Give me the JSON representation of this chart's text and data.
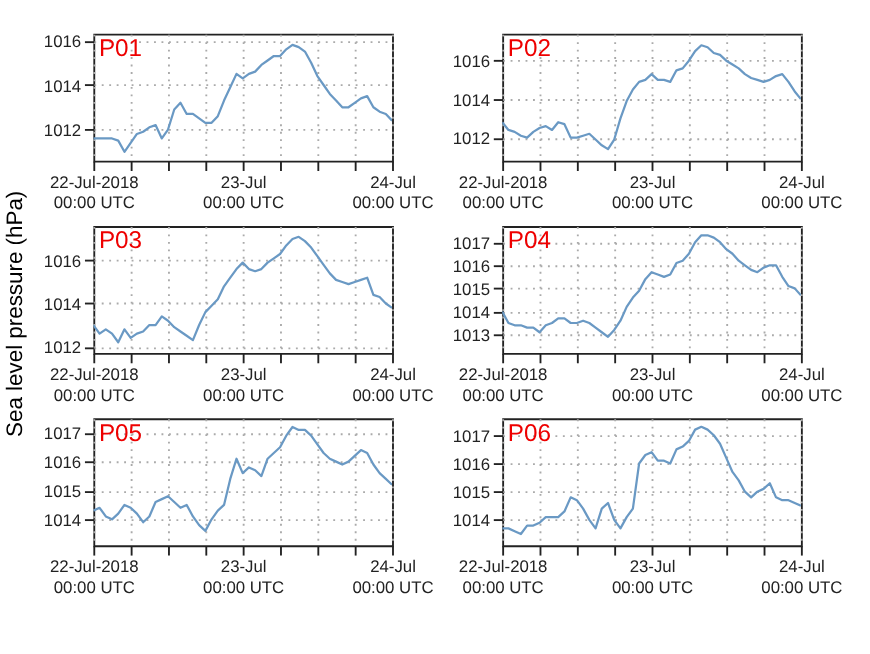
{
  "chart_data": [
    {
      "type": "line",
      "title": "P01",
      "color": "#6a99c4",
      "grid": true,
      "xlim": [
        "2018-07-22T00:00",
        "2018-07-24T00:00"
      ],
      "ylim": [
        1010.6,
        1016.3
      ],
      "yticks": [
        1012,
        1014,
        1016
      ],
      "xticks": [
        {
          "value": "2018-07-22T00:00",
          "label": "22-Jul-2018\n00:00 UTC"
        },
        {
          "value": "2018-07-22T06:00",
          "label": null
        },
        {
          "value": "2018-07-22T12:00",
          "label": null
        },
        {
          "value": "2018-07-22T18:00",
          "label": null
        },
        {
          "value": "2018-07-23T00:00",
          "label": "23-Jul\n00:00 UTC"
        },
        {
          "value": "2018-07-23T06:00",
          "label": null
        },
        {
          "value": "2018-07-23T12:00",
          "label": null
        },
        {
          "value": "2018-07-23T18:00",
          "label": null
        },
        {
          "value": "2018-07-24T00:00",
          "label": "24-Jul\n00:00 UTC"
        }
      ],
      "x": [
        "2018-07-22T00:00",
        "2018-07-22T01:00",
        "2018-07-22T02:00",
        "2018-07-22T03:00",
        "2018-07-22T04:00",
        "2018-07-22T05:00",
        "2018-07-22T06:00",
        "2018-07-22T07:00",
        "2018-07-22T08:00",
        "2018-07-22T09:00",
        "2018-07-22T10:00",
        "2018-07-22T11:00",
        "2018-07-22T12:00",
        "2018-07-22T13:00",
        "2018-07-22T14:00",
        "2018-07-22T15:00",
        "2018-07-22T16:00",
        "2018-07-22T17:00",
        "2018-07-22T18:00",
        "2018-07-22T19:00",
        "2018-07-22T20:00",
        "2018-07-22T21:00",
        "2018-07-22T22:00",
        "2018-07-22T23:00",
        "2018-07-23T00:00",
        "2018-07-23T01:00",
        "2018-07-23T02:00",
        "2018-07-23T03:00",
        "2018-07-23T04:00",
        "2018-07-23T05:00",
        "2018-07-23T06:00",
        "2018-07-23T07:00",
        "2018-07-23T08:00",
        "2018-07-23T09:00",
        "2018-07-23T10:00",
        "2018-07-23T11:00",
        "2018-07-23T12:00",
        "2018-07-23T13:00",
        "2018-07-23T14:00",
        "2018-07-23T15:00",
        "2018-07-23T16:00",
        "2018-07-23T17:00",
        "2018-07-23T18:00",
        "2018-07-23T19:00",
        "2018-07-23T20:00",
        "2018-07-23T21:00",
        "2018-07-23T22:00",
        "2018-07-23T23:00",
        "2018-07-24T00:00"
      ],
      "values": [
        1011.6,
        1011.6,
        1011.6,
        1011.6,
        1011.5,
        1011.0,
        1011.4,
        1011.8,
        1011.9,
        1012.1,
        1012.2,
        1011.6,
        1012.0,
        1012.9,
        1013.2,
        1012.7,
        1012.7,
        1012.5,
        1012.3,
        1012.3,
        1012.6,
        1013.3,
        1013.9,
        1014.5,
        1014.3,
        1014.5,
        1014.6,
        1014.9,
        1015.1,
        1015.3,
        1015.3,
        1015.6,
        1015.8,
        1015.7,
        1015.5,
        1015.0,
        1014.4,
        1014.0,
        1013.6,
        1013.3,
        1013.0,
        1013.0,
        1013.2,
        1013.4,
        1013.5,
        1013.0,
        1012.8,
        1012.7,
        1012.4
      ]
    },
    {
      "type": "line",
      "title": "P02",
      "color": "#6a99c4",
      "grid": true,
      "xlim": [
        "2018-07-22T00:00",
        "2018-07-24T00:00"
      ],
      "ylim": [
        1010.8,
        1017.4
      ],
      "yticks": [
        1012,
        1014,
        1016
      ],
      "xticks": [
        {
          "value": "2018-07-22T00:00",
          "label": "22-Jul-2018\n00:00 UTC"
        },
        {
          "value": "2018-07-22T06:00",
          "label": null
        },
        {
          "value": "2018-07-22T12:00",
          "label": null
        },
        {
          "value": "2018-07-22T18:00",
          "label": null
        },
        {
          "value": "2018-07-23T00:00",
          "label": "23-Jul\n00:00 UTC"
        },
        {
          "value": "2018-07-23T06:00",
          "label": null
        },
        {
          "value": "2018-07-23T12:00",
          "label": null
        },
        {
          "value": "2018-07-23T18:00",
          "label": null
        },
        {
          "value": "2018-07-24T00:00",
          "label": "24-Jul\n00:00 UTC"
        }
      ],
      "x": [
        "2018-07-22T00:00",
        "2018-07-22T01:00",
        "2018-07-22T02:00",
        "2018-07-22T03:00",
        "2018-07-22T04:00",
        "2018-07-22T05:00",
        "2018-07-22T06:00",
        "2018-07-22T07:00",
        "2018-07-22T08:00",
        "2018-07-22T09:00",
        "2018-07-22T10:00",
        "2018-07-22T11:00",
        "2018-07-22T12:00",
        "2018-07-22T13:00",
        "2018-07-22T14:00",
        "2018-07-22T15:00",
        "2018-07-22T16:00",
        "2018-07-22T17:00",
        "2018-07-22T18:00",
        "2018-07-22T19:00",
        "2018-07-22T20:00",
        "2018-07-22T21:00",
        "2018-07-22T22:00",
        "2018-07-22T23:00",
        "2018-07-23T00:00",
        "2018-07-23T01:00",
        "2018-07-23T02:00",
        "2018-07-23T03:00",
        "2018-07-23T04:00",
        "2018-07-23T05:00",
        "2018-07-23T06:00",
        "2018-07-23T07:00",
        "2018-07-23T08:00",
        "2018-07-23T09:00",
        "2018-07-23T10:00",
        "2018-07-23T11:00",
        "2018-07-23T12:00",
        "2018-07-23T13:00",
        "2018-07-23T14:00",
        "2018-07-23T15:00",
        "2018-07-23T16:00",
        "2018-07-23T17:00",
        "2018-07-23T18:00",
        "2018-07-23T19:00",
        "2018-07-23T20:00",
        "2018-07-23T21:00",
        "2018-07-23T22:00",
        "2018-07-23T23:00",
        "2018-07-24T00:00"
      ],
      "values": [
        1012.8,
        1012.4,
        1012.3,
        1012.1,
        1012.0,
        1012.3,
        1012.5,
        1012.6,
        1012.4,
        1012.8,
        1012.7,
        1012.0,
        1012.0,
        1012.1,
        1012.2,
        1011.9,
        1011.6,
        1011.4,
        1011.9,
        1013.0,
        1013.9,
        1014.5,
        1014.9,
        1015.0,
        1015.3,
        1015.0,
        1015.0,
        1014.9,
        1015.5,
        1015.6,
        1016.0,
        1016.5,
        1016.8,
        1016.7,
        1016.4,
        1016.3,
        1016.0,
        1015.8,
        1015.6,
        1015.3,
        1015.1,
        1015.0,
        1014.9,
        1015.0,
        1015.2,
        1015.3,
        1014.9,
        1014.4,
        1014.0
      ]
    },
    {
      "type": "line",
      "title": "P03",
      "ylabel": "Sea level pressure (hPa)",
      "color": "#6a99c4",
      "grid": true,
      "xlim": [
        "2018-07-22T00:00",
        "2018-07-24T00:00"
      ],
      "ylim": [
        1011.7,
        1017.6
      ],
      "yticks": [
        1012,
        1014,
        1016
      ],
      "xticks": [
        {
          "value": "2018-07-22T00:00",
          "label": "22-Jul-2018\n00:00 UTC"
        },
        {
          "value": "2018-07-22T06:00",
          "label": null
        },
        {
          "value": "2018-07-22T12:00",
          "label": null
        },
        {
          "value": "2018-07-22T18:00",
          "label": null
        },
        {
          "value": "2018-07-23T00:00",
          "label": "23-Jul\n00:00 UTC"
        },
        {
          "value": "2018-07-23T06:00",
          "label": null
        },
        {
          "value": "2018-07-23T12:00",
          "label": null
        },
        {
          "value": "2018-07-23T18:00",
          "label": null
        },
        {
          "value": "2018-07-24T00:00",
          "label": "24-Jul\n00:00 UTC"
        }
      ],
      "x": [
        "2018-07-22T00:00",
        "2018-07-22T01:00",
        "2018-07-22T02:00",
        "2018-07-22T03:00",
        "2018-07-22T04:00",
        "2018-07-22T05:00",
        "2018-07-22T06:00",
        "2018-07-22T07:00",
        "2018-07-22T08:00",
        "2018-07-22T09:00",
        "2018-07-22T10:00",
        "2018-07-22T11:00",
        "2018-07-22T12:00",
        "2018-07-22T13:00",
        "2018-07-22T14:00",
        "2018-07-22T15:00",
        "2018-07-22T16:00",
        "2018-07-22T17:00",
        "2018-07-22T18:00",
        "2018-07-22T19:00",
        "2018-07-22T20:00",
        "2018-07-22T21:00",
        "2018-07-22T22:00",
        "2018-07-22T23:00",
        "2018-07-23T00:00",
        "2018-07-23T01:00",
        "2018-07-23T02:00",
        "2018-07-23T03:00",
        "2018-07-23T04:00",
        "2018-07-23T05:00",
        "2018-07-23T06:00",
        "2018-07-23T07:00",
        "2018-07-23T08:00",
        "2018-07-23T09:00",
        "2018-07-23T10:00",
        "2018-07-23T11:00",
        "2018-07-23T12:00",
        "2018-07-23T13:00",
        "2018-07-23T14:00",
        "2018-07-23T15:00",
        "2018-07-23T16:00",
        "2018-07-23T17:00",
        "2018-07-23T18:00",
        "2018-07-23T19:00",
        "2018-07-23T20:00",
        "2018-07-23T21:00",
        "2018-07-23T22:00",
        "2018-07-23T23:00",
        "2018-07-24T00:00"
      ],
      "values": [
        1013.0,
        1012.6,
        1012.8,
        1012.6,
        1012.2,
        1012.8,
        1012.4,
        1012.6,
        1012.7,
        1013.0,
        1013.0,
        1013.4,
        1013.2,
        1012.9,
        1012.7,
        1012.5,
        1012.3,
        1013.0,
        1013.6,
        1013.9,
        1014.2,
        1014.8,
        1015.2,
        1015.6,
        1015.9,
        1015.6,
        1015.5,
        1015.6,
        1015.9,
        1016.1,
        1016.3,
        1016.7,
        1017.0,
        1017.1,
        1016.9,
        1016.6,
        1016.2,
        1015.8,
        1015.4,
        1015.1,
        1015.0,
        1014.9,
        1015.0,
        1015.1,
        1015.2,
        1014.4,
        1014.3,
        1014.0,
        1013.8
      ]
    },
    {
      "type": "line",
      "title": "P04",
      "color": "#6a99c4",
      "grid": true,
      "xlim": [
        "2018-07-22T00:00",
        "2018-07-24T00:00"
      ],
      "ylim": [
        1012.2,
        1017.7
      ],
      "yticks": [
        1013,
        1014,
        1015,
        1016,
        1017
      ],
      "xticks": [
        {
          "value": "2018-07-22T00:00",
          "label": "22-Jul-2018\n00:00 UTC"
        },
        {
          "value": "2018-07-22T06:00",
          "label": null
        },
        {
          "value": "2018-07-22T12:00",
          "label": null
        },
        {
          "value": "2018-07-22T18:00",
          "label": null
        },
        {
          "value": "2018-07-23T00:00",
          "label": "23-Jul\n00:00 UTC"
        },
        {
          "value": "2018-07-23T06:00",
          "label": null
        },
        {
          "value": "2018-07-23T12:00",
          "label": null
        },
        {
          "value": "2018-07-23T18:00",
          "label": null
        },
        {
          "value": "2018-07-24T00:00",
          "label": "24-Jul\n00:00 UTC"
        }
      ],
      "x": [
        "2018-07-22T00:00",
        "2018-07-22T01:00",
        "2018-07-22T02:00",
        "2018-07-22T03:00",
        "2018-07-22T04:00",
        "2018-07-22T05:00",
        "2018-07-22T06:00",
        "2018-07-22T07:00",
        "2018-07-22T08:00",
        "2018-07-22T09:00",
        "2018-07-22T10:00",
        "2018-07-22T11:00",
        "2018-07-22T12:00",
        "2018-07-22T13:00",
        "2018-07-22T14:00",
        "2018-07-22T15:00",
        "2018-07-22T16:00",
        "2018-07-22T17:00",
        "2018-07-22T18:00",
        "2018-07-22T19:00",
        "2018-07-22T20:00",
        "2018-07-22T21:00",
        "2018-07-22T22:00",
        "2018-07-22T23:00",
        "2018-07-23T00:00",
        "2018-07-23T01:00",
        "2018-07-23T02:00",
        "2018-07-23T03:00",
        "2018-07-23T04:00",
        "2018-07-23T05:00",
        "2018-07-23T06:00",
        "2018-07-23T07:00",
        "2018-07-23T08:00",
        "2018-07-23T09:00",
        "2018-07-23T10:00",
        "2018-07-23T11:00",
        "2018-07-23T12:00",
        "2018-07-23T13:00",
        "2018-07-23T14:00",
        "2018-07-23T15:00",
        "2018-07-23T16:00",
        "2018-07-23T17:00",
        "2018-07-23T18:00",
        "2018-07-23T19:00",
        "2018-07-23T20:00",
        "2018-07-23T21:00",
        "2018-07-23T22:00",
        "2018-07-23T23:00",
        "2018-07-24T00:00"
      ],
      "values": [
        1014.0,
        1013.5,
        1013.4,
        1013.4,
        1013.3,
        1013.3,
        1013.1,
        1013.4,
        1013.5,
        1013.7,
        1013.7,
        1013.5,
        1013.5,
        1013.6,
        1013.5,
        1013.3,
        1013.1,
        1012.9,
        1013.2,
        1013.6,
        1014.2,
        1014.6,
        1014.9,
        1015.4,
        1015.7,
        1015.6,
        1015.5,
        1015.6,
        1016.1,
        1016.2,
        1016.5,
        1017.0,
        1017.3,
        1017.3,
        1017.2,
        1017.0,
        1016.7,
        1016.5,
        1016.2,
        1016.0,
        1015.8,
        1015.7,
        1015.9,
        1016.0,
        1016.0,
        1015.5,
        1015.1,
        1015.0,
        1014.7
      ]
    },
    {
      "type": "line",
      "title": "P05",
      "color": "#6a99c4",
      "grid": true,
      "xlim": [
        "2018-07-22T00:00",
        "2018-07-24T00:00"
      ],
      "ylim": [
        1013.1,
        1017.5
      ],
      "yticks": [
        1014,
        1015,
        1016,
        1017
      ],
      "xticks": [
        {
          "value": "2018-07-22T00:00",
          "label": "22-Jul-2018\n00:00 UTC"
        },
        {
          "value": "2018-07-22T06:00",
          "label": null
        },
        {
          "value": "2018-07-22T12:00",
          "label": null
        },
        {
          "value": "2018-07-22T18:00",
          "label": null
        },
        {
          "value": "2018-07-23T00:00",
          "label": "23-Jul\n00:00 UTC"
        },
        {
          "value": "2018-07-23T06:00",
          "label": null
        },
        {
          "value": "2018-07-23T12:00",
          "label": null
        },
        {
          "value": "2018-07-23T18:00",
          "label": null
        },
        {
          "value": "2018-07-24T00:00",
          "label": "24-Jul\n00:00 UTC"
        }
      ],
      "x": [
        "2018-07-22T00:00",
        "2018-07-22T01:00",
        "2018-07-22T02:00",
        "2018-07-22T03:00",
        "2018-07-22T04:00",
        "2018-07-22T05:00",
        "2018-07-22T06:00",
        "2018-07-22T07:00",
        "2018-07-22T08:00",
        "2018-07-22T09:00",
        "2018-07-22T10:00",
        "2018-07-22T11:00",
        "2018-07-22T12:00",
        "2018-07-22T13:00",
        "2018-07-22T14:00",
        "2018-07-22T15:00",
        "2018-07-22T16:00",
        "2018-07-22T17:00",
        "2018-07-22T18:00",
        "2018-07-22T19:00",
        "2018-07-22T20:00",
        "2018-07-22T21:00",
        "2018-07-22T22:00",
        "2018-07-22T23:00",
        "2018-07-23T00:00",
        "2018-07-23T01:00",
        "2018-07-23T02:00",
        "2018-07-23T03:00",
        "2018-07-23T04:00",
        "2018-07-23T05:00",
        "2018-07-23T06:00",
        "2018-07-23T07:00",
        "2018-07-23T08:00",
        "2018-07-23T09:00",
        "2018-07-23T10:00",
        "2018-07-23T11:00",
        "2018-07-23T12:00",
        "2018-07-23T13:00",
        "2018-07-23T14:00",
        "2018-07-23T15:00",
        "2018-07-23T16:00",
        "2018-07-23T17:00",
        "2018-07-23T18:00",
        "2018-07-23T19:00",
        "2018-07-23T20:00",
        "2018-07-23T21:00",
        "2018-07-23T22:00",
        "2018-07-23T23:00",
        "2018-07-24T00:00"
      ],
      "values": [
        1014.3,
        1014.4,
        1014.1,
        1014.0,
        1014.2,
        1014.5,
        1014.4,
        1014.2,
        1013.9,
        1014.1,
        1014.6,
        1014.7,
        1014.8,
        1014.6,
        1014.4,
        1014.5,
        1014.1,
        1013.8,
        1013.6,
        1014.0,
        1014.3,
        1014.5,
        1015.4,
        1016.1,
        1015.6,
        1015.8,
        1015.7,
        1015.5,
        1016.1,
        1016.3,
        1016.5,
        1016.9,
        1017.2,
        1017.1,
        1017.1,
        1016.9,
        1016.6,
        1016.3,
        1016.1,
        1016.0,
        1015.9,
        1016.0,
        1016.2,
        1016.4,
        1016.3,
        1015.9,
        1015.6,
        1015.4,
        1015.2
      ]
    },
    {
      "type": "line",
      "title": "P06",
      "color": "#6a99c4",
      "grid": true,
      "xlim": [
        "2018-07-22T00:00",
        "2018-07-24T00:00"
      ],
      "ylim": [
        1013.1,
        1017.6
      ],
      "yticks": [
        1014,
        1015,
        1016,
        1017
      ],
      "xticks": [
        {
          "value": "2018-07-22T00:00",
          "label": "22-Jul-2018\n00:00 UTC"
        },
        {
          "value": "2018-07-22T06:00",
          "label": null
        },
        {
          "value": "2018-07-22T12:00",
          "label": null
        },
        {
          "value": "2018-07-22T18:00",
          "label": null
        },
        {
          "value": "2018-07-23T00:00",
          "label": "23-Jul\n00:00 UTC"
        },
        {
          "value": "2018-07-23T06:00",
          "label": null
        },
        {
          "value": "2018-07-23T12:00",
          "label": null
        },
        {
          "value": "2018-07-23T18:00",
          "label": null
        },
        {
          "value": "2018-07-24T00:00",
          "label": "24-Jul\n00:00 UTC"
        }
      ],
      "x": [
        "2018-07-22T00:00",
        "2018-07-22T01:00",
        "2018-07-22T02:00",
        "2018-07-22T03:00",
        "2018-07-22T04:00",
        "2018-07-22T05:00",
        "2018-07-22T06:00",
        "2018-07-22T07:00",
        "2018-07-22T08:00",
        "2018-07-22T09:00",
        "2018-07-22T10:00",
        "2018-07-22T11:00",
        "2018-07-22T12:00",
        "2018-07-22T13:00",
        "2018-07-22T14:00",
        "2018-07-22T15:00",
        "2018-07-22T16:00",
        "2018-07-22T17:00",
        "2018-07-22T18:00",
        "2018-07-22T19:00",
        "2018-07-22T20:00",
        "2018-07-22T21:00",
        "2018-07-22T22:00",
        "2018-07-22T23:00",
        "2018-07-23T00:00",
        "2018-07-23T01:00",
        "2018-07-23T02:00",
        "2018-07-23T03:00",
        "2018-07-23T04:00",
        "2018-07-23T05:00",
        "2018-07-23T06:00",
        "2018-07-23T07:00",
        "2018-07-23T08:00",
        "2018-07-23T09:00",
        "2018-07-23T10:00",
        "2018-07-23T11:00",
        "2018-07-23T12:00",
        "2018-07-23T13:00",
        "2018-07-23T14:00",
        "2018-07-23T15:00",
        "2018-07-23T16:00",
        "2018-07-23T17:00",
        "2018-07-23T18:00",
        "2018-07-23T19:00",
        "2018-07-23T20:00",
        "2018-07-23T21:00",
        "2018-07-23T22:00",
        "2018-07-23T23:00",
        "2018-07-24T00:00"
      ],
      "values": [
        1013.7,
        1013.7,
        1013.6,
        1013.5,
        1013.8,
        1013.8,
        1013.9,
        1014.1,
        1014.1,
        1014.1,
        1014.3,
        1014.8,
        1014.7,
        1014.4,
        1014.0,
        1013.7,
        1014.4,
        1014.6,
        1014.0,
        1013.7,
        1014.1,
        1014.4,
        1016.0,
        1016.3,
        1016.4,
        1016.1,
        1016.1,
        1016.0,
        1016.5,
        1016.6,
        1016.8,
        1017.2,
        1017.3,
        1017.2,
        1017.0,
        1016.7,
        1016.2,
        1015.7,
        1015.4,
        1015.0,
        1014.8,
        1015.0,
        1015.1,
        1015.3,
        1014.8,
        1014.7,
        1014.7,
        1014.6,
        1014.5
      ]
    }
  ]
}
